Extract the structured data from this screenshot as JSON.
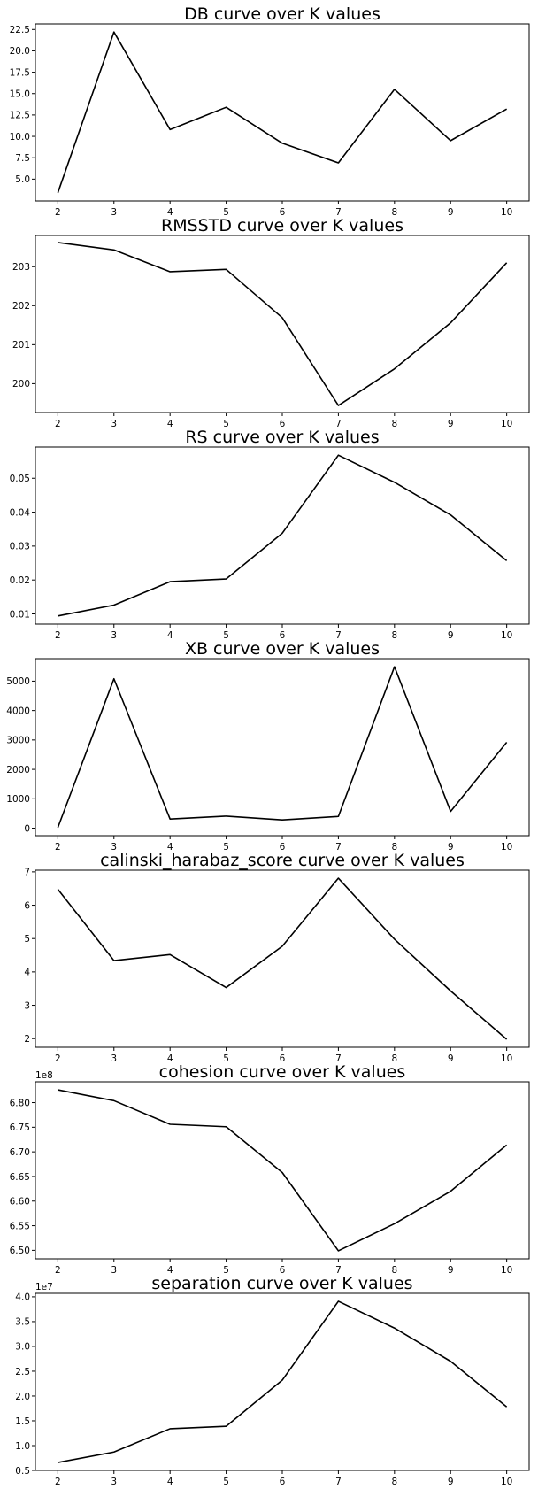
{
  "chart_data": [
    {
      "type": "line",
      "title": "DB curve over K values",
      "x": [
        2,
        3,
        4,
        5,
        6,
        7,
        8,
        9,
        10
      ],
      "series": [
        {
          "values": [
            3.4,
            22.2,
            10.8,
            13.4,
            9.2,
            6.9,
            15.5,
            9.5,
            13.2
          ]
        }
      ],
      "xticks": [
        "2",
        "3",
        "4",
        "5",
        "6",
        "7",
        "8",
        "9",
        "10"
      ],
      "yticks": [
        5.0,
        7.5,
        10.0,
        12.5,
        15.0,
        17.5,
        20.0,
        22.5
      ],
      "ytick_labels": [
        "5.0",
        "7.5",
        "10.0",
        "12.5",
        "15.0",
        "17.5",
        "20.0",
        "22.5"
      ],
      "ylim": [
        2.45,
        23.15
      ],
      "offset": "",
      "line_color": "#000000",
      "grid": false
    },
    {
      "type": "line",
      "title": "RMSSTD curve over K values",
      "x": [
        2,
        3,
        4,
        5,
        6,
        7,
        8,
        9,
        10
      ],
      "series": [
        {
          "values": [
            203.62,
            203.43,
            202.87,
            202.93,
            201.69,
            199.44,
            200.38,
            201.56,
            203.1
          ]
        }
      ],
      "xticks": [
        "2",
        "3",
        "4",
        "5",
        "6",
        "7",
        "8",
        "9",
        "10"
      ],
      "yticks": [
        200,
        201,
        202,
        203
      ],
      "ytick_labels": [
        "200",
        "201",
        "202",
        "203"
      ],
      "ylim": [
        199.26,
        203.8
      ],
      "offset": "",
      "line_color": "#000000",
      "grid": false
    },
    {
      "type": "line",
      "title": "RS curve over K values",
      "x": [
        2,
        3,
        4,
        5,
        6,
        7,
        8,
        9,
        10
      ],
      "series": [
        {
          "values": [
            0.0094,
            0.0126,
            0.0195,
            0.0203,
            0.0338,
            0.0568,
            0.0488,
            0.0392,
            0.0257
          ]
        }
      ],
      "xticks": [
        "2",
        "3",
        "4",
        "5",
        "6",
        "7",
        "8",
        "9",
        "10"
      ],
      "yticks": [
        0.01,
        0.02,
        0.03,
        0.04,
        0.05
      ],
      "ytick_labels": [
        "0.01",
        "0.02",
        "0.03",
        "0.04",
        "0.05"
      ],
      "ylim": [
        0.007,
        0.0592
      ],
      "offset": "",
      "line_color": "#000000",
      "grid": false
    },
    {
      "type": "line",
      "title": "XB curve over K values",
      "x": [
        2,
        3,
        4,
        5,
        6,
        7,
        8,
        9,
        10
      ],
      "series": [
        {
          "values": [
            20,
            5080,
            310,
            410,
            280,
            400,
            5490,
            570,
            2920
          ]
        }
      ],
      "xticks": [
        "2",
        "3",
        "4",
        "5",
        "6",
        "7",
        "8",
        "9",
        "10"
      ],
      "yticks": [
        0,
        1000,
        2000,
        3000,
        4000,
        5000
      ],
      "ytick_labels": [
        "0",
        "1000",
        "2000",
        "3000",
        "4000",
        "5000"
      ],
      "ylim": [
        -255,
        5765
      ],
      "offset": "",
      "line_color": "#000000",
      "grid": false
    },
    {
      "type": "line",
      "title": "calinski_harabaz_score curve over K values",
      "x": [
        2,
        3,
        4,
        5,
        6,
        7,
        8,
        9,
        10
      ],
      "series": [
        {
          "values": [
            6.48,
            4.34,
            4.52,
            3.53,
            4.77,
            6.81,
            4.98,
            3.43,
            1.98
          ]
        }
      ],
      "xticks": [
        "2",
        "3",
        "4",
        "5",
        "6",
        "7",
        "8",
        "9",
        "10"
      ],
      "yticks": [
        2,
        3,
        4,
        5,
        6,
        7
      ],
      "ytick_labels": [
        "2",
        "3",
        "4",
        "5",
        "6",
        "7"
      ],
      "ylim": [
        1.74,
        7.05
      ],
      "offset": "",
      "line_color": "#000000",
      "grid": false
    },
    {
      "type": "line",
      "title": "cohesion curve over K values",
      "x": [
        2,
        3,
        4,
        5,
        6,
        7,
        8,
        9,
        10
      ],
      "series": [
        {
          "values": [
            6.826,
            6.804,
            6.756,
            6.751,
            6.658,
            6.499,
            6.554,
            6.62,
            6.714
          ]
        }
      ],
      "xticks": [
        "2",
        "3",
        "4",
        "5",
        "6",
        "7",
        "8",
        "9",
        "10"
      ],
      "yticks": [
        6.5,
        6.55,
        6.6,
        6.65,
        6.7,
        6.75,
        6.8
      ],
      "ytick_labels": [
        "6.50",
        "6.55",
        "6.60",
        "6.65",
        "6.70",
        "6.75",
        "6.80"
      ],
      "ylim": [
        6.4827,
        6.8423
      ],
      "offset": "1e8",
      "line_color": "#000000",
      "grid": false
    },
    {
      "type": "line",
      "title": "separation curve over K values",
      "x": [
        2,
        3,
        4,
        5,
        6,
        7,
        8,
        9,
        10
      ],
      "series": [
        {
          "values": [
            0.66,
            0.87,
            1.34,
            1.39,
            2.32,
            3.91,
            3.37,
            2.7,
            1.78
          ]
        }
      ],
      "xticks": [
        "2",
        "3",
        "4",
        "5",
        "6",
        "7",
        "8",
        "9",
        "10"
      ],
      "yticks": [
        0.5,
        1.0,
        1.5,
        2.0,
        2.5,
        3.0,
        3.5,
        4.0
      ],
      "ytick_labels": [
        "0.5",
        "1.0",
        "1.5",
        "2.0",
        "2.5",
        "3.0",
        "3.5",
        "4.0"
      ],
      "ylim": [
        0.5,
        4.07
      ],
      "offset": "1e7",
      "line_color": "#000000",
      "grid": false
    }
  ]
}
